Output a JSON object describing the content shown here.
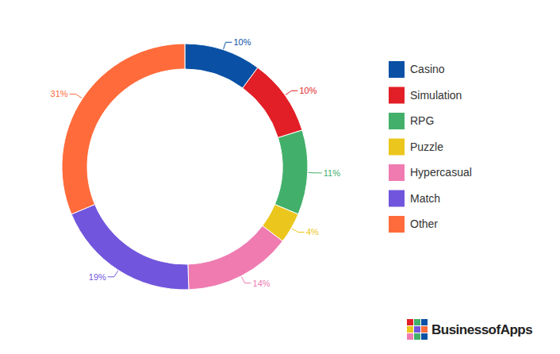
{
  "chart_data": {
    "type": "pie",
    "categories": [
      "Casino",
      "Simulation",
      "RPG",
      "Puzzle",
      "Hypercasual",
      "Match",
      "Other"
    ],
    "values": [
      10,
      10,
      11,
      4,
      14,
      19,
      31
    ],
    "value_labels": [
      "10%",
      "10%",
      "11%",
      "4%",
      "14%",
      "19%",
      "31%"
    ],
    "colors": [
      "#0a51a5",
      "#e21f26",
      "#42b06a",
      "#ebc61c",
      "#ef7bb1",
      "#7155dc",
      "#ff6b3b"
    ],
    "data_labels": true,
    "legend": "right",
    "source": "BusinessofApps"
  }
}
